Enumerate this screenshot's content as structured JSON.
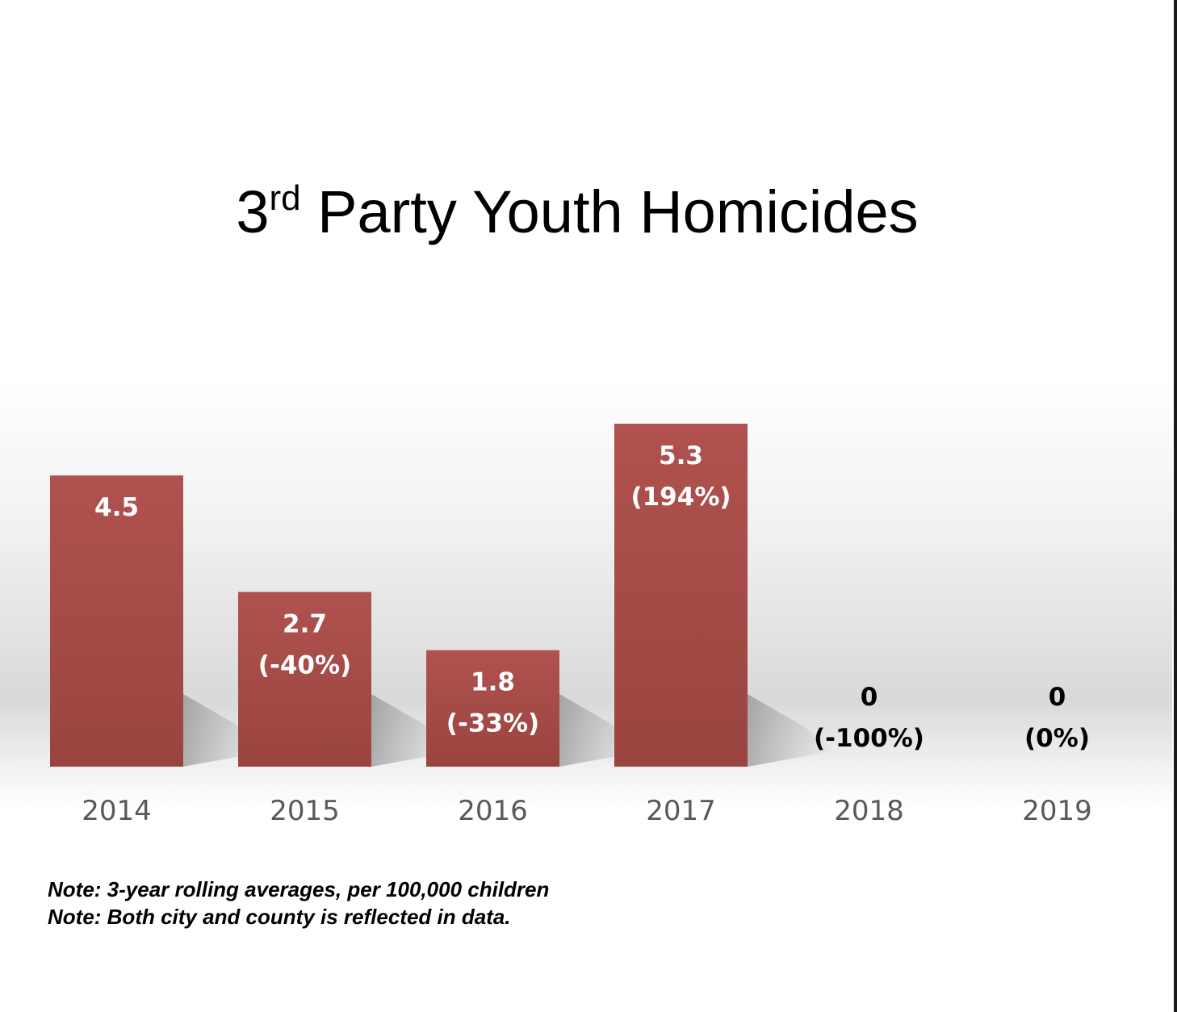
{
  "title": {
    "prefix": "3",
    "superscript": "rd",
    "rest": " Party Youth Homicides"
  },
  "chart_data": {
    "type": "bar",
    "title": "3rd Party Youth Homicides",
    "categories": [
      "2014",
      "2015",
      "2016",
      "2017",
      "2018",
      "2019"
    ],
    "values": [
      4.5,
      2.7,
      1.8,
      5.3,
      0,
      0
    ],
    "value_labels": [
      "4.5",
      "2.7",
      "1.8",
      "5.3",
      "0",
      "0"
    ],
    "change_labels": [
      "",
      "(-40%)",
      "(-33%)",
      "(194%)",
      "(-100%)",
      "(0%)"
    ],
    "xlabel": "",
    "ylabel": "",
    "ylim": [
      0,
      5.3
    ],
    "grid": false,
    "legend": "none",
    "bar_color": "#b0524f",
    "bar_color_dark": "#9a443f"
  },
  "notes": [
    "Note: 3-year rolling averages, per 100,000 children",
    "Note: Both city and county is reflected in data."
  ]
}
